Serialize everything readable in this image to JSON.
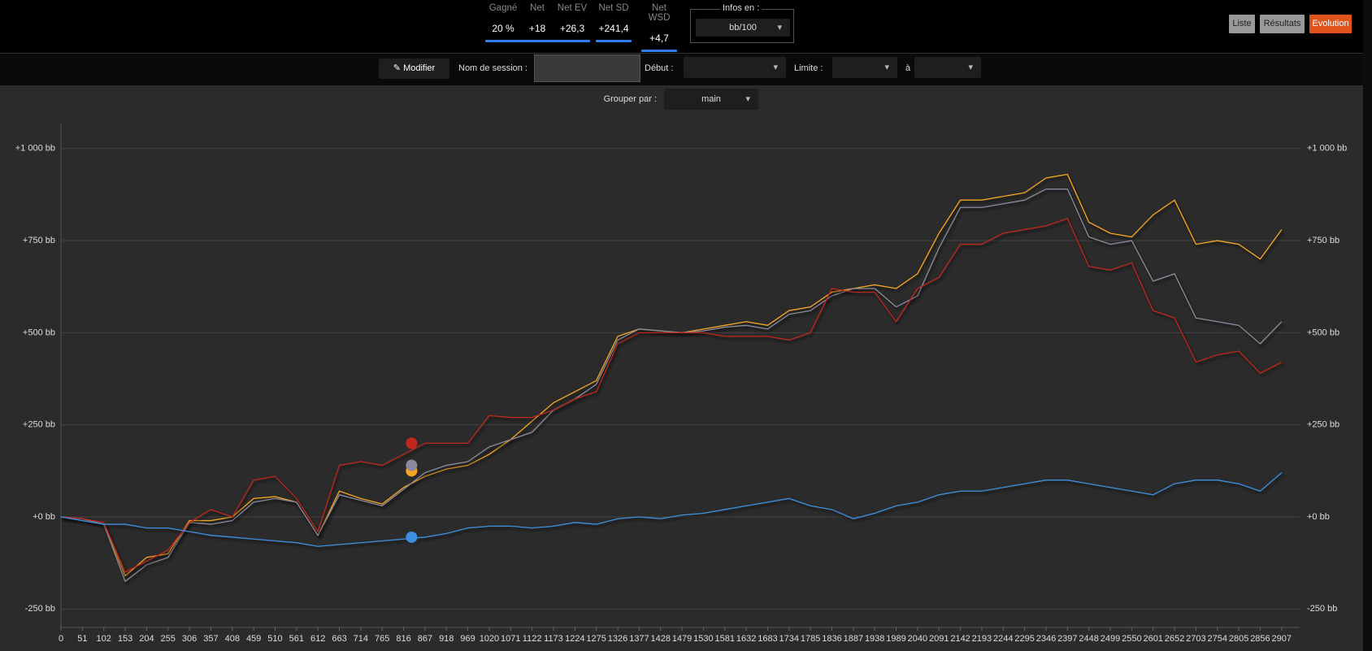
{
  "header": {
    "stats": [
      {
        "label": "Gagné",
        "value": "20 %"
      },
      {
        "label": "Net",
        "value": "+18"
      },
      {
        "label": "Net EV",
        "value": "+26,3"
      },
      {
        "label": "Net SD",
        "value": "+241,4"
      },
      {
        "label": "Net WSD",
        "value": "+4,7"
      }
    ],
    "infos_label": "Infos en :",
    "infos_value": "bb/100",
    "buttons": [
      "Liste",
      "Résultats",
      "Evolution"
    ]
  },
  "toolbar": {
    "modify": "Modifier",
    "session_label": "Nom de session :",
    "start_label": "Début :",
    "limit_label": "Limite :",
    "to_label": "à",
    "group_label": "Grouper par :",
    "group_value": "main"
  },
  "chart_data": {
    "type": "line",
    "x": [
      0,
      51,
      102,
      153,
      204,
      255,
      306,
      357,
      408,
      459,
      510,
      561,
      612,
      663,
      714,
      765,
      816,
      867,
      918,
      969,
      1020,
      1071,
      1122,
      1173,
      1224,
      1275,
      1326,
      1377,
      1428,
      1479,
      1530,
      1581,
      1632,
      1683,
      1734,
      1785,
      1836,
      1887,
      1938,
      1989,
      2040,
      2091,
      2142,
      2193,
      2244,
      2295,
      2346,
      2397,
      2448,
      2499,
      2550,
      2601,
      2652,
      2703,
      2754,
      2805,
      2856,
      2907
    ],
    "series": [
      {
        "color": "#f5a623",
        "values": [
          0,
          -5,
          -20,
          -160,
          -110,
          -100,
          -10,
          -10,
          0,
          50,
          55,
          40,
          -50,
          70,
          50,
          35,
          80,
          110,
          130,
          140,
          170,
          210,
          260,
          310,
          340,
          370,
          490,
          510,
          505,
          500,
          510,
          520,
          530,
          520,
          560,
          570,
          610,
          620,
          630,
          620,
          660,
          770,
          860,
          860,
          870,
          880,
          920,
          930,
          800,
          770,
          760,
          820,
          860,
          740,
          750,
          740,
          700,
          780
        ]
      },
      {
        "color": "#8a8a9c",
        "values": [
          0,
          -5,
          -20,
          -175,
          -130,
          -110,
          -15,
          -20,
          -10,
          40,
          50,
          40,
          -50,
          60,
          45,
          30,
          75,
          120,
          140,
          150,
          190,
          210,
          230,
          290,
          320,
          360,
          480,
          510,
          505,
          500,
          505,
          515,
          520,
          510,
          550,
          560,
          600,
          620,
          620,
          570,
          600,
          730,
          840,
          840,
          850,
          860,
          890,
          890,
          760,
          740,
          750,
          640,
          660,
          540,
          530,
          520,
          470,
          530
        ]
      },
      {
        "color": "#c0281c",
        "values": [
          0,
          -5,
          -15,
          -150,
          -120,
          -90,
          -15,
          20,
          0,
          100,
          110,
          50,
          -40,
          140,
          150,
          140,
          170,
          200,
          200,
          200,
          275,
          270,
          270,
          290,
          320,
          340,
          470,
          500,
          500,
          500,
          500,
          490,
          490,
          490,
          480,
          500,
          620,
          610,
          610,
          530,
          620,
          650,
          740,
          740,
          770,
          780,
          790,
          810,
          680,
          670,
          690,
          560,
          540,
          420,
          440,
          450,
          390,
          420
        ]
      },
      {
        "color": "#3d8fe0",
        "values": [
          0,
          -10,
          -20,
          -20,
          -30,
          -30,
          -40,
          -50,
          -55,
          -60,
          -65,
          -70,
          -80,
          -75,
          -70,
          -65,
          -60,
          -55,
          -45,
          -30,
          -25,
          -25,
          -30,
          -25,
          -15,
          -20,
          -5,
          0,
          -5,
          5,
          10,
          20,
          30,
          40,
          50,
          30,
          20,
          -5,
          10,
          30,
          40,
          60,
          70,
          70,
          80,
          90,
          100,
          100,
          90,
          80,
          70,
          60,
          90,
          100,
          100,
          90,
          70,
          120
        ]
      }
    ],
    "markers": {
      "x": 835,
      "values": [
        125,
        140,
        200,
        -55
      ]
    },
    "xlim": [
      0,
      2950
    ],
    "ylim": [
      -300,
      1070
    ],
    "xticks": [
      0,
      51,
      102,
      153,
      204,
      255,
      306,
      357,
      408,
      459,
      510,
      561,
      612,
      663,
      714,
      765,
      816,
      867,
      918,
      969,
      1020,
      1071,
      1122,
      1173,
      1224,
      1275,
      1326,
      1377,
      1428,
      1479,
      1530,
      1581,
      1632,
      1683,
      1734,
      1785,
      1836,
      1887,
      1938,
      1989,
      2040,
      2091,
      2142,
      2193,
      2244,
      2295,
      2346,
      2397,
      2448,
      2499,
      2550,
      2601,
      2652,
      2703,
      2754,
      2805,
      2856,
      2907
    ],
    "yticks": [
      {
        "value": -250,
        "label": "-250 bb"
      },
      {
        "value": 0,
        "label": "+0 bb"
      },
      {
        "value": 250,
        "label": "+250 bb"
      },
      {
        "value": 500,
        "label": "+500 bb"
      },
      {
        "value": 750,
        "label": "+750 bb"
      },
      {
        "value": 1000,
        "label": "+1 000 bb"
      }
    ],
    "grid": true
  }
}
